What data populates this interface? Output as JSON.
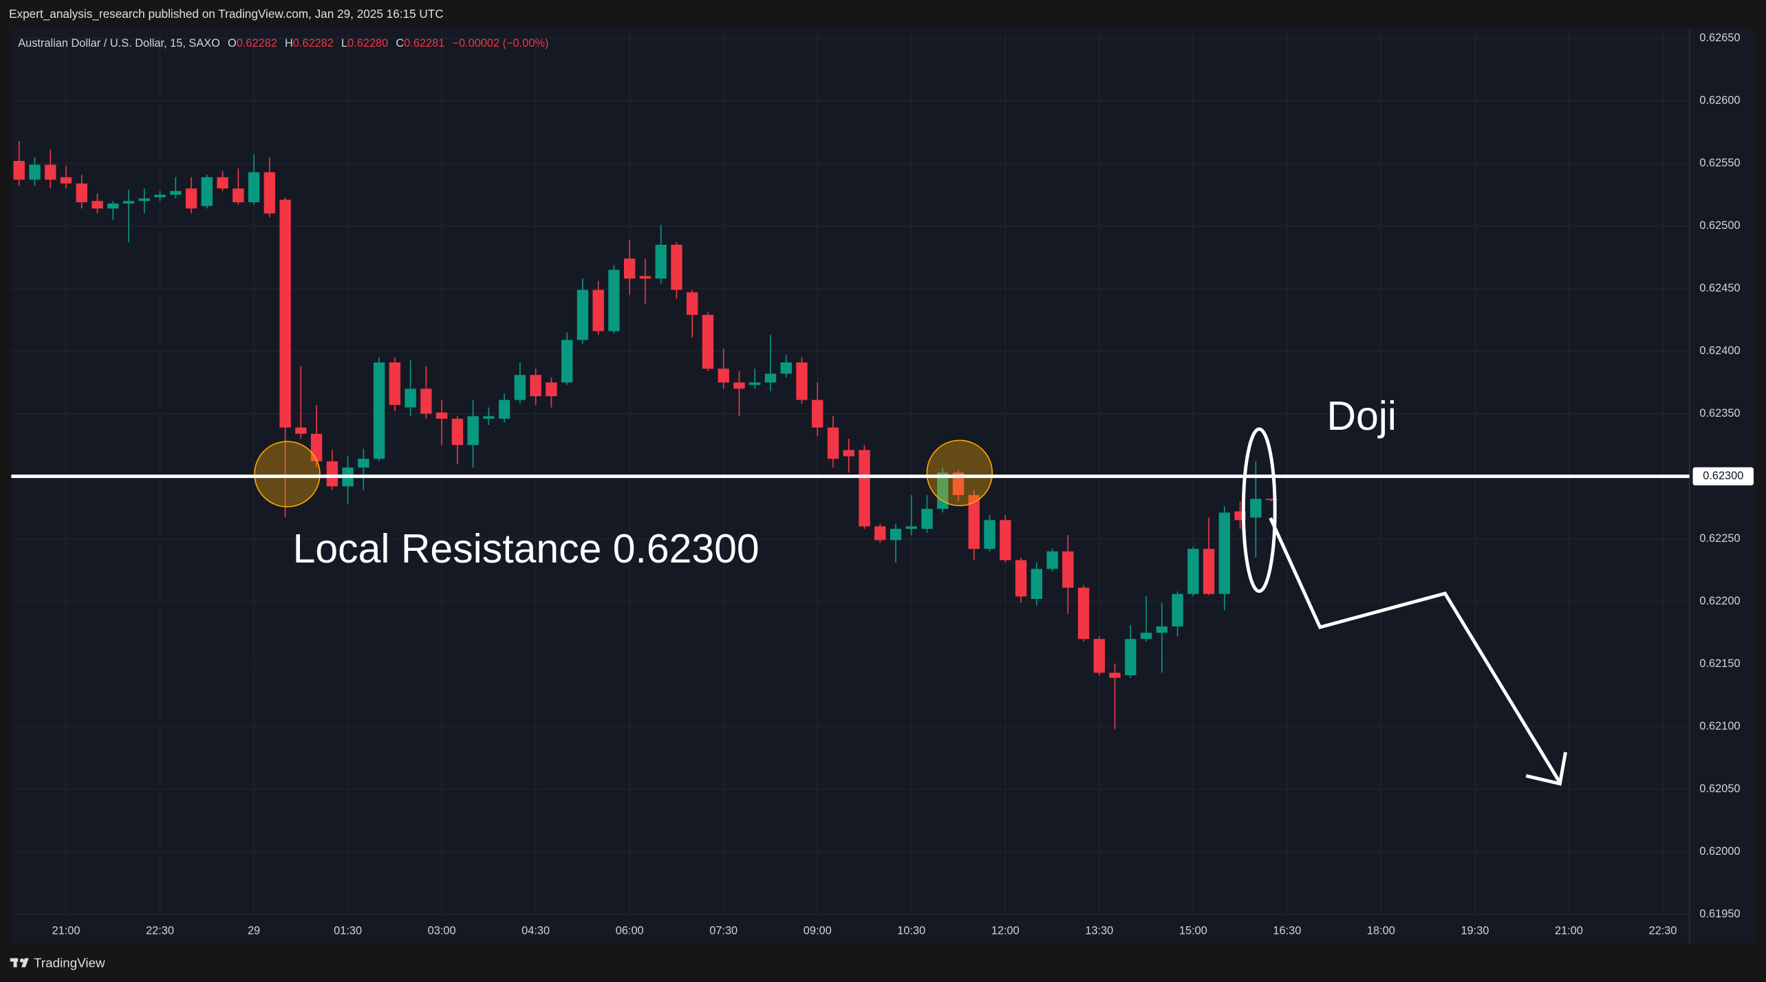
{
  "top_bar": {
    "text": "Expert_analysis_research published on TradingView.com, Jan 29, 2025 16:15 UTC"
  },
  "header": {
    "symbol": "Australian Dollar / U.S. Dollar, 15, SAXO",
    "ohlc": [
      {
        "label": "O",
        "value": "0.62282"
      },
      {
        "label": "H",
        "value": "0.62282"
      },
      {
        "label": "L",
        "value": "0.62280"
      },
      {
        "label": "C",
        "value": "0.62281"
      }
    ],
    "change": "−0.00002 (−0.00%)"
  },
  "footer": {
    "brand": "TradingView"
  },
  "chart_data": {
    "type": "candlestick",
    "up_color": "#089981",
    "down_color": "#f23645",
    "grid": true,
    "ylim": [
      0.6195,
      0.62658
    ],
    "yticks": [
      {
        "value": 0.6265,
        "label": "0.62650"
      },
      {
        "value": 0.626,
        "label": "0.62600"
      },
      {
        "value": 0.6255,
        "label": "0.62550"
      },
      {
        "value": 0.625,
        "label": "0.62500"
      },
      {
        "value": 0.6245,
        "label": "0.62450"
      },
      {
        "value": 0.624,
        "label": "0.62400"
      },
      {
        "value": 0.6235,
        "label": "0.62350"
      },
      {
        "value": 0.623,
        "label": "0.62300"
      },
      {
        "value": 0.6225,
        "label": "0.62250"
      },
      {
        "value": 0.622,
        "label": "0.62200"
      },
      {
        "value": 0.6215,
        "label": "0.62150"
      },
      {
        "value": 0.621,
        "label": "0.62100"
      },
      {
        "value": 0.6205,
        "label": "0.62050"
      },
      {
        "value": 0.62,
        "label": "0.62000"
      },
      {
        "value": 0.6195,
        "label": "0.61950"
      }
    ],
    "xlim": [
      -0.5,
      106.7
    ],
    "xticks": [
      {
        "value": 3,
        "label": "21:00"
      },
      {
        "value": 9,
        "label": "22:30"
      },
      {
        "value": 15,
        "label": "29"
      },
      {
        "value": 21,
        "label": "01:30"
      },
      {
        "value": 27,
        "label": "03:00"
      },
      {
        "value": 33,
        "label": "04:30"
      },
      {
        "value": 39,
        "label": "06:00"
      },
      {
        "value": 45,
        "label": "07:30"
      },
      {
        "value": 51,
        "label": "09:00"
      },
      {
        "value": 57,
        "label": "10:30"
      },
      {
        "value": 63,
        "label": "12:00"
      },
      {
        "value": 69,
        "label": "13:30"
      },
      {
        "value": 75,
        "label": "15:00"
      },
      {
        "value": 81,
        "label": "16:30"
      },
      {
        "value": 87,
        "label": "18:00"
      },
      {
        "value": 93,
        "label": "19:30"
      },
      {
        "value": 99,
        "label": "21:00"
      },
      {
        "value": 105,
        "label": "22:30"
      }
    ],
    "open": [
      0.62552,
      0.62537,
      0.62549,
      0.62539,
      0.62534,
      0.6252,
      0.62514,
      0.62518,
      0.6252,
      0.62523,
      0.62525,
      0.6253,
      0.62516,
      0.62539,
      0.6253,
      0.62519,
      0.62543,
      0.62521,
      0.62339,
      0.62334,
      0.62312,
      0.62292,
      0.62307,
      0.62314,
      0.62391,
      0.62355,
      0.6237,
      0.62351,
      0.62346,
      0.62325,
      0.62346,
      0.62346,
      0.62361,
      0.62381,
      0.62375,
      0.62375,
      0.62409,
      0.62449,
      0.62416,
      0.62474,
      0.6246,
      0.62458,
      0.62485,
      0.62447,
      0.62429,
      0.62386,
      0.62375,
      0.62373,
      0.62375,
      0.62382,
      0.62391,
      0.62361,
      0.62339,
      0.62321,
      0.62321,
      0.6226,
      0.62249,
      0.62258,
      0.62258,
      0.62274,
      0.62303,
      0.62285,
      0.62242,
      0.62265,
      0.62233,
      0.62202,
      0.62226,
      0.6224,
      0.62211,
      0.6217,
      0.62143,
      0.62141,
      0.6217,
      0.62175,
      0.6218,
      0.62206,
      0.62242,
      0.62206,
      0.62272,
      0.62267,
      0.62282
    ],
    "high": [
      0.62568,
      0.62555,
      0.62561,
      0.62548,
      0.62541,
      0.62526,
      0.6252,
      0.62529,
      0.6253,
      0.62528,
      0.62539,
      0.62539,
      0.62541,
      0.62544,
      0.62546,
      0.62557,
      0.62555,
      0.62523,
      0.62388,
      0.62357,
      0.62321,
      0.62316,
      0.62322,
      0.62395,
      0.62395,
      0.62393,
      0.62388,
      0.62361,
      0.62348,
      0.62361,
      0.62355,
      0.62366,
      0.62391,
      0.62386,
      0.62379,
      0.62415,
      0.62458,
      0.62456,
      0.62469,
      0.62489,
      0.62474,
      0.62501,
      0.62487,
      0.62449,
      0.62431,
      0.62402,
      0.62384,
      0.62386,
      0.62413,
      0.62397,
      0.62395,
      0.62375,
      0.62348,
      0.6233,
      0.62325,
      0.62262,
      0.62262,
      0.62285,
      0.62285,
      0.62307,
      0.62305,
      0.62289,
      0.62269,
      0.62269,
      0.62235,
      0.62231,
      0.62242,
      0.62253,
      0.62213,
      0.62172,
      0.6215,
      0.62181,
      0.62204,
      0.62199,
      0.62208,
      0.62244,
      0.62267,
      0.62276,
      0.6228,
      0.62312,
      0.62282
    ],
    "low": [
      0.62532,
      0.62532,
      0.6253,
      0.6253,
      0.62514,
      0.6251,
      0.62505,
      0.62487,
      0.6251,
      0.6252,
      0.62522,
      0.6251,
      0.62514,
      0.62528,
      0.62517,
      0.62517,
      0.62507,
      0.62267,
      0.6233,
      0.62307,
      0.62289,
      0.62278,
      0.62289,
      0.62312,
      0.62352,
      0.62348,
      0.62346,
      0.62325,
      0.6231,
      0.62307,
      0.62341,
      0.62343,
      0.62358,
      0.62357,
      0.62355,
      0.62373,
      0.62406,
      0.62413,
      0.62414,
      0.62445,
      0.62438,
      0.62454,
      0.62442,
      0.62411,
      0.62384,
      0.6237,
      0.62348,
      0.6237,
      0.62368,
      0.62379,
      0.62358,
      0.62332,
      0.62307,
      0.62303,
      0.62258,
      0.62247,
      0.62231,
      0.62253,
      0.62255,
      0.62271,
      0.6228,
      0.62233,
      0.6224,
      0.62231,
      0.62199,
      0.62197,
      0.62224,
      0.6219,
      0.62168,
      0.62141,
      0.62098,
      0.62139,
      0.62168,
      0.62143,
      0.62172,
      0.62204,
      0.62205,
      0.62193,
      0.62258,
      0.62235,
      0.6228
    ],
    "close": [
      0.62537,
      0.62549,
      0.62537,
      0.62534,
      0.62519,
      0.62514,
      0.62518,
      0.6252,
      0.62522,
      0.62525,
      0.62528,
      0.62514,
      0.62539,
      0.6253,
      0.62519,
      0.62543,
      0.6251,
      0.62339,
      0.62334,
      0.62312,
      0.62292,
      0.62307,
      0.62314,
      0.62391,
      0.62357,
      0.6237,
      0.6235,
      0.62346,
      0.62325,
      0.62348,
      0.62348,
      0.62361,
      0.62381,
      0.62364,
      0.62364,
      0.62409,
      0.62449,
      0.62416,
      0.62465,
      0.62458,
      0.62458,
      0.62485,
      0.62449,
      0.62429,
      0.62386,
      0.62375,
      0.6237,
      0.62375,
      0.62382,
      0.62391,
      0.62361,
      0.62339,
      0.62314,
      0.62316,
      0.6226,
      0.62249,
      0.62258,
      0.6226,
      0.62274,
      0.62303,
      0.62285,
      0.62242,
      0.62265,
      0.62233,
      0.62204,
      0.62226,
      0.6224,
      0.62211,
      0.6217,
      0.62143,
      0.62139,
      0.6217,
      0.62175,
      0.6218,
      0.62206,
      0.62242,
      0.62206,
      0.62271,
      0.62265,
      0.62282,
      0.62281
    ],
    "resistance": {
      "value": 0.623,
      "label": "0.62300"
    },
    "annotations": [
      "Local Resistance 0.62300",
      "Doji"
    ]
  }
}
